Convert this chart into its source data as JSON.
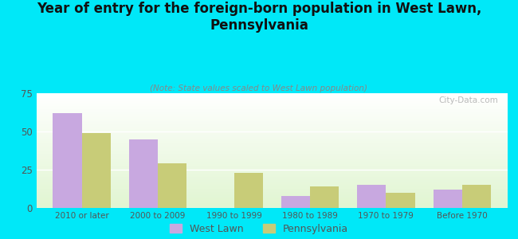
{
  "title": "Year of entry for the foreign-born population in West Lawn,\nPennsylvania",
  "subtitle": "(Note: State values scaled to West Lawn population)",
  "categories": [
    "2010 or later",
    "2000 to 2009",
    "1990 to 1999",
    "1980 to 1989",
    "1970 to 1979",
    "Before 1970"
  ],
  "west_lawn": [
    62,
    45,
    0,
    8,
    15,
    12
  ],
  "pennsylvania": [
    49,
    29,
    23,
    14,
    10,
    15
  ],
  "west_lawn_color": "#c8a8e0",
  "pennsylvania_color": "#c8cc78",
  "background_color": "#00e8f8",
  "ylim": [
    0,
    75
  ],
  "yticks": [
    0,
    25,
    50,
    75
  ],
  "bar_width": 0.38,
  "legend_west_lawn": "West Lawn",
  "legend_pennsylvania": "Pennsylvania",
  "watermark": "City-Data.com"
}
